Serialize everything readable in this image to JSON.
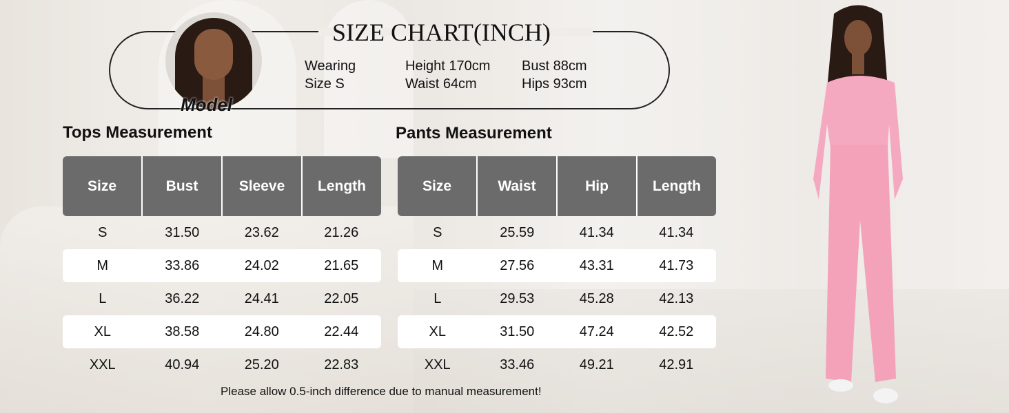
{
  "header": {
    "title": "SIZE CHART(INCH)",
    "model_label": "Model",
    "info": [
      [
        "Wearing",
        "Size S"
      ],
      [
        "Height 170cm",
        "Waist 64cm"
      ],
      [
        "Bust 88cm",
        "Hips 93cm"
      ]
    ]
  },
  "tops": {
    "title": "Tops Measurement",
    "columns": [
      "Size",
      "Bust",
      "Sleeve",
      "Length"
    ],
    "rows": [
      [
        "S",
        "31.50",
        "23.62",
        "21.26"
      ],
      [
        "M",
        "33.86",
        "24.02",
        "21.65"
      ],
      [
        "L",
        "36.22",
        "24.41",
        "22.05"
      ],
      [
        "XL",
        "38.58",
        "24.80",
        "22.44"
      ],
      [
        "XXL",
        "40.94",
        "25.20",
        "22.83"
      ]
    ]
  },
  "pants": {
    "title": "Pants Measurement",
    "columns": [
      "Size",
      "Waist",
      "Hip",
      "Length"
    ],
    "rows": [
      [
        "S",
        "25.59",
        "41.34",
        "41.34"
      ],
      [
        "M",
        "27.56",
        "43.31",
        "41.73"
      ],
      [
        "L",
        "29.53",
        "45.28",
        "42.13"
      ],
      [
        "XL",
        "31.50",
        "47.24",
        "42.52"
      ],
      [
        "XXL",
        "33.46",
        "49.21",
        "42.91"
      ]
    ]
  },
  "note": "Please allow 0.5-inch difference due to manual measurement!",
  "colors": {
    "header_bg": "#6b6b6b",
    "outfit": "#f4a9c0"
  }
}
